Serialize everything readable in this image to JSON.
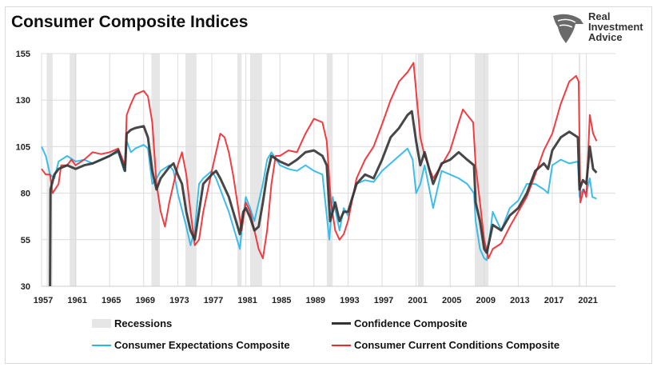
{
  "chart_data": {
    "type": "line",
    "title": "Consumer Composite Indices",
    "xlabel": "",
    "ylabel": "",
    "xlim": [
      1957,
      2023
    ],
    "ylim": [
      30,
      155
    ],
    "x_ticks": [
      "1957",
      "1961",
      "1965",
      "1969",
      "1973",
      "1977",
      "1981",
      "1985",
      "1989",
      "1993",
      "1997",
      "2001",
      "2005",
      "2009",
      "2013",
      "2017",
      "2021"
    ],
    "y_ticks": [
      "30",
      "55",
      "80",
      "105",
      "130",
      "155"
    ],
    "grid": true,
    "legend_position": "bottom",
    "recessions": [
      [
        1957.6,
        1958.3
      ],
      [
        1960.3,
        1961.1
      ],
      [
        1969.9,
        1970.9
      ],
      [
        1973.9,
        1975.2
      ],
      [
        1980.0,
        1980.5
      ],
      [
        1981.5,
        1982.9
      ],
      [
        1990.5,
        1991.2
      ],
      [
        2001.2,
        2001.9
      ],
      [
        2007.9,
        2009.5
      ],
      [
        2020.1,
        2020.3
      ]
    ],
    "recession_label": "Recessions",
    "series": [
      {
        "name": "Confidence Composite",
        "color": "#333333",
        "points": [
          [
            1958.0,
            30
          ],
          [
            1958.05,
            82
          ],
          [
            1958.5,
            90
          ],
          [
            1959,
            93
          ],
          [
            1960,
            95
          ],
          [
            1961,
            93
          ],
          [
            1962,
            95
          ],
          [
            1963,
            96
          ],
          [
            1964,
            98
          ],
          [
            1965,
            100
          ],
          [
            1966,
            103
          ],
          [
            1966.8,
            92
          ],
          [
            1967,
            112
          ],
          [
            1967.5,
            114
          ],
          [
            1968,
            115
          ],
          [
            1969,
            116
          ],
          [
            1969.5,
            110
          ],
          [
            1970,
            92
          ],
          [
            1970.5,
            82
          ],
          [
            1971,
            88
          ],
          [
            1972,
            94
          ],
          [
            1972.5,
            96
          ],
          [
            1973,
            90
          ],
          [
            1973.5,
            85
          ],
          [
            1974,
            70
          ],
          [
            1974.5,
            60
          ],
          [
            1975,
            55
          ],
          [
            1975.5,
            70
          ],
          [
            1976,
            85
          ],
          [
            1977,
            90
          ],
          [
            1977.5,
            92
          ],
          [
            1978,
            88
          ],
          [
            1979,
            78
          ],
          [
            1980.3,
            58
          ],
          [
            1980.7,
            70
          ],
          [
            1981,
            72
          ],
          [
            1981.5,
            67
          ],
          [
            1982,
            60
          ],
          [
            1982.5,
            62
          ],
          [
            1983,
            75
          ],
          [
            1983.5,
            90
          ],
          [
            1984,
            100
          ],
          [
            1985,
            97
          ],
          [
            1986,
            95
          ],
          [
            1987,
            98
          ],
          [
            1988,
            102
          ],
          [
            1989,
            103
          ],
          [
            1990,
            100
          ],
          [
            1990.5,
            95
          ],
          [
            1990.9,
            65
          ],
          [
            1991.5,
            75
          ],
          [
            1992,
            65
          ],
          [
            1992.5,
            70
          ],
          [
            1993,
            70
          ],
          [
            1994,
            85
          ],
          [
            1995,
            90
          ],
          [
            1996,
            88
          ],
          [
            1997,
            98
          ],
          [
            1998,
            110
          ],
          [
            1999,
            115
          ],
          [
            2000,
            122
          ],
          [
            2000.5,
            124
          ],
          [
            2001,
            108
          ],
          [
            2001.5,
            95
          ],
          [
            2002,
            102
          ],
          [
            2003,
            85
          ],
          [
            2004,
            96
          ],
          [
            2005,
            98
          ],
          [
            2006,
            102
          ],
          [
            2007,
            98
          ],
          [
            2007.8,
            95
          ],
          [
            2008,
            75
          ],
          [
            2008.5,
            65
          ],
          [
            2009,
            50
          ],
          [
            2009.3,
            48
          ],
          [
            2010,
            63
          ],
          [
            2011,
            60
          ],
          [
            2012,
            68
          ],
          [
            2013,
            72
          ],
          [
            2014,
            80
          ],
          [
            2015,
            92
          ],
          [
            2016,
            96
          ],
          [
            2016.5,
            93
          ],
          [
            2017,
            103
          ],
          [
            2018,
            110
          ],
          [
            2019,
            113
          ],
          [
            2020.0,
            110
          ],
          [
            2020.2,
            82
          ],
          [
            2020.6,
            87
          ],
          [
            2021.0,
            85
          ],
          [
            2021.4,
            105
          ],
          [
            2021.8,
            93
          ],
          [
            2022.2,
            91
          ]
        ]
      },
      {
        "name": "Consumer Expectations Composite",
        "color": "#29b6e8",
        "points": [
          [
            1957,
            105
          ],
          [
            1957.5,
            100
          ],
          [
            1958,
            90
          ],
          [
            1958.5,
            88
          ],
          [
            1959,
            97
          ],
          [
            1960,
            100
          ],
          [
            1961,
            97
          ],
          [
            1962,
            98
          ],
          [
            1963,
            96
          ],
          [
            1964,
            98
          ],
          [
            1965,
            100
          ],
          [
            1966,
            102
          ],
          [
            1966.7,
            92
          ],
          [
            1967,
            108
          ],
          [
            1967.5,
            102
          ],
          [
            1968,
            104
          ],
          [
            1969,
            106
          ],
          [
            1969.5,
            104
          ],
          [
            1970,
            85
          ],
          [
            1970.5,
            88
          ],
          [
            1971,
            92
          ],
          [
            1972,
            95
          ],
          [
            1972.5,
            92
          ],
          [
            1973,
            80
          ],
          [
            1974,
            62
          ],
          [
            1974.5,
            52
          ],
          [
            1975,
            60
          ],
          [
            1975.5,
            85
          ],
          [
            1976,
            88
          ],
          [
            1977,
            92
          ],
          [
            1977.5,
            88
          ],
          [
            1978,
            82
          ],
          [
            1979,
            70
          ],
          [
            1980.3,
            50
          ],
          [
            1980.7,
            68
          ],
          [
            1981,
            78
          ],
          [
            1981.5,
            72
          ],
          [
            1982,
            65
          ],
          [
            1982.5,
            75
          ],
          [
            1983,
            85
          ],
          [
            1983.5,
            98
          ],
          [
            1984,
            102
          ],
          [
            1985,
            95
          ],
          [
            1986,
            93
          ],
          [
            1987,
            92
          ],
          [
            1988,
            95
          ],
          [
            1989,
            92
          ],
          [
            1990,
            90
          ],
          [
            1990.8,
            55
          ],
          [
            1991.2,
            78
          ],
          [
            1992,
            60
          ],
          [
            1992.5,
            72
          ],
          [
            1993,
            68
          ],
          [
            1994,
            85
          ],
          [
            1995,
            87
          ],
          [
            1996,
            86
          ],
          [
            1997,
            92
          ],
          [
            1998,
            96
          ],
          [
            1999,
            100
          ],
          [
            2000,
            104
          ],
          [
            2000.6,
            98
          ],
          [
            2001,
            80
          ],
          [
            2001.5,
            85
          ],
          [
            2002,
            95
          ],
          [
            2003,
            72
          ],
          [
            2004,
            92
          ],
          [
            2005,
            90
          ],
          [
            2006,
            88
          ],
          [
            2007,
            85
          ],
          [
            2007.8,
            80
          ],
          [
            2008,
            65
          ],
          [
            2008.5,
            50
          ],
          [
            2009,
            45
          ],
          [
            2009.3,
            44
          ],
          [
            2010,
            70
          ],
          [
            2011,
            60
          ],
          [
            2012,
            72
          ],
          [
            2013,
            76
          ],
          [
            2014,
            85
          ],
          [
            2015,
            85
          ],
          [
            2016,
            82
          ],
          [
            2016.5,
            80
          ],
          [
            2017,
            95
          ],
          [
            2018,
            98
          ],
          [
            2019,
            96
          ],
          [
            2020.0,
            97
          ],
          [
            2020.2,
            78
          ],
          [
            2020.6,
            82
          ],
          [
            2021.0,
            80
          ],
          [
            2021.4,
            88
          ],
          [
            2021.7,
            78
          ],
          [
            2022.2,
            77
          ]
        ]
      },
      {
        "name": "Consumer Current Conditions Composite",
        "color": "#f0282d",
        "points": [
          [
            1957,
            93
          ],
          [
            1957.5,
            90
          ],
          [
            1958,
            90
          ],
          [
            1958.3,
            80
          ],
          [
            1959,
            85
          ],
          [
            1959.3,
            95
          ],
          [
            1960,
            95
          ],
          [
            1960.5,
            98
          ],
          [
            1961,
            95
          ],
          [
            1962,
            98
          ],
          [
            1963,
            102
          ],
          [
            1964,
            101
          ],
          [
            1965,
            102
          ],
          [
            1966,
            104
          ],
          [
            1966.8,
            95
          ],
          [
            1967,
            122
          ],
          [
            1967.5,
            128
          ],
          [
            1968,
            133
          ],
          [
            1969,
            135
          ],
          [
            1969.5,
            132
          ],
          [
            1970,
            118
          ],
          [
            1970.5,
            85
          ],
          [
            1971,
            70
          ],
          [
            1971.5,
            62
          ],
          [
            1972,
            75
          ],
          [
            1972.5,
            85
          ],
          [
            1973,
            95
          ],
          [
            1973.5,
            102
          ],
          [
            1974,
            90
          ],
          [
            1974.5,
            70
          ],
          [
            1975,
            52
          ],
          [
            1975.5,
            55
          ],
          [
            1976,
            70
          ],
          [
            1977,
            92
          ],
          [
            1978,
            112
          ],
          [
            1978.5,
            110
          ],
          [
            1979,
            102
          ],
          [
            1979.5,
            90
          ],
          [
            1980.5,
            60
          ],
          [
            1981,
            75
          ],
          [
            1981.5,
            70
          ],
          [
            1982,
            60
          ],
          [
            1982.5,
            50
          ],
          [
            1983,
            45
          ],
          [
            1983.5,
            60
          ],
          [
            1984,
            85
          ],
          [
            1984.5,
            100
          ],
          [
            1985,
            100
          ],
          [
            1986,
            103
          ],
          [
            1987,
            102
          ],
          [
            1988,
            112
          ],
          [
            1989,
            120
          ],
          [
            1990,
            118
          ],
          [
            1990.5,
            108
          ],
          [
            1991,
            75
          ],
          [
            1991.5,
            60
          ],
          [
            1992,
            55
          ],
          [
            1992.5,
            58
          ],
          [
            1993,
            65
          ],
          [
            1994,
            88
          ],
          [
            1995,
            98
          ],
          [
            1996,
            105
          ],
          [
            1997,
            117
          ],
          [
            1998,
            130
          ],
          [
            1999,
            140
          ],
          [
            2000,
            145
          ],
          [
            2000.7,
            150
          ],
          [
            2001,
            135
          ],
          [
            2001.5,
            110
          ],
          [
            2002,
            100
          ],
          [
            2003,
            88
          ],
          [
            2004,
            95
          ],
          [
            2005,
            103
          ],
          [
            2006,
            118
          ],
          [
            2006.5,
            125
          ],
          [
            2007,
            122
          ],
          [
            2007.7,
            118
          ],
          [
            2008,
            95
          ],
          [
            2008.5,
            75
          ],
          [
            2009,
            55
          ],
          [
            2009.5,
            45
          ],
          [
            2010,
            50
          ],
          [
            2011,
            53
          ],
          [
            2012,
            62
          ],
          [
            2013,
            70
          ],
          [
            2014,
            78
          ],
          [
            2015,
            90
          ],
          [
            2016,
            103
          ],
          [
            2017,
            112
          ],
          [
            2018,
            128
          ],
          [
            2019,
            140
          ],
          [
            2019.8,
            143
          ],
          [
            2020.1,
            140
          ],
          [
            2020.3,
            75
          ],
          [
            2020.7,
            82
          ],
          [
            2021.0,
            78
          ],
          [
            2021.4,
            122
          ],
          [
            2021.8,
            112
          ],
          [
            2022.2,
            108
          ]
        ]
      }
    ]
  },
  "logo": {
    "line1": "Real",
    "line2": "Investment",
    "line3": "Advice"
  }
}
